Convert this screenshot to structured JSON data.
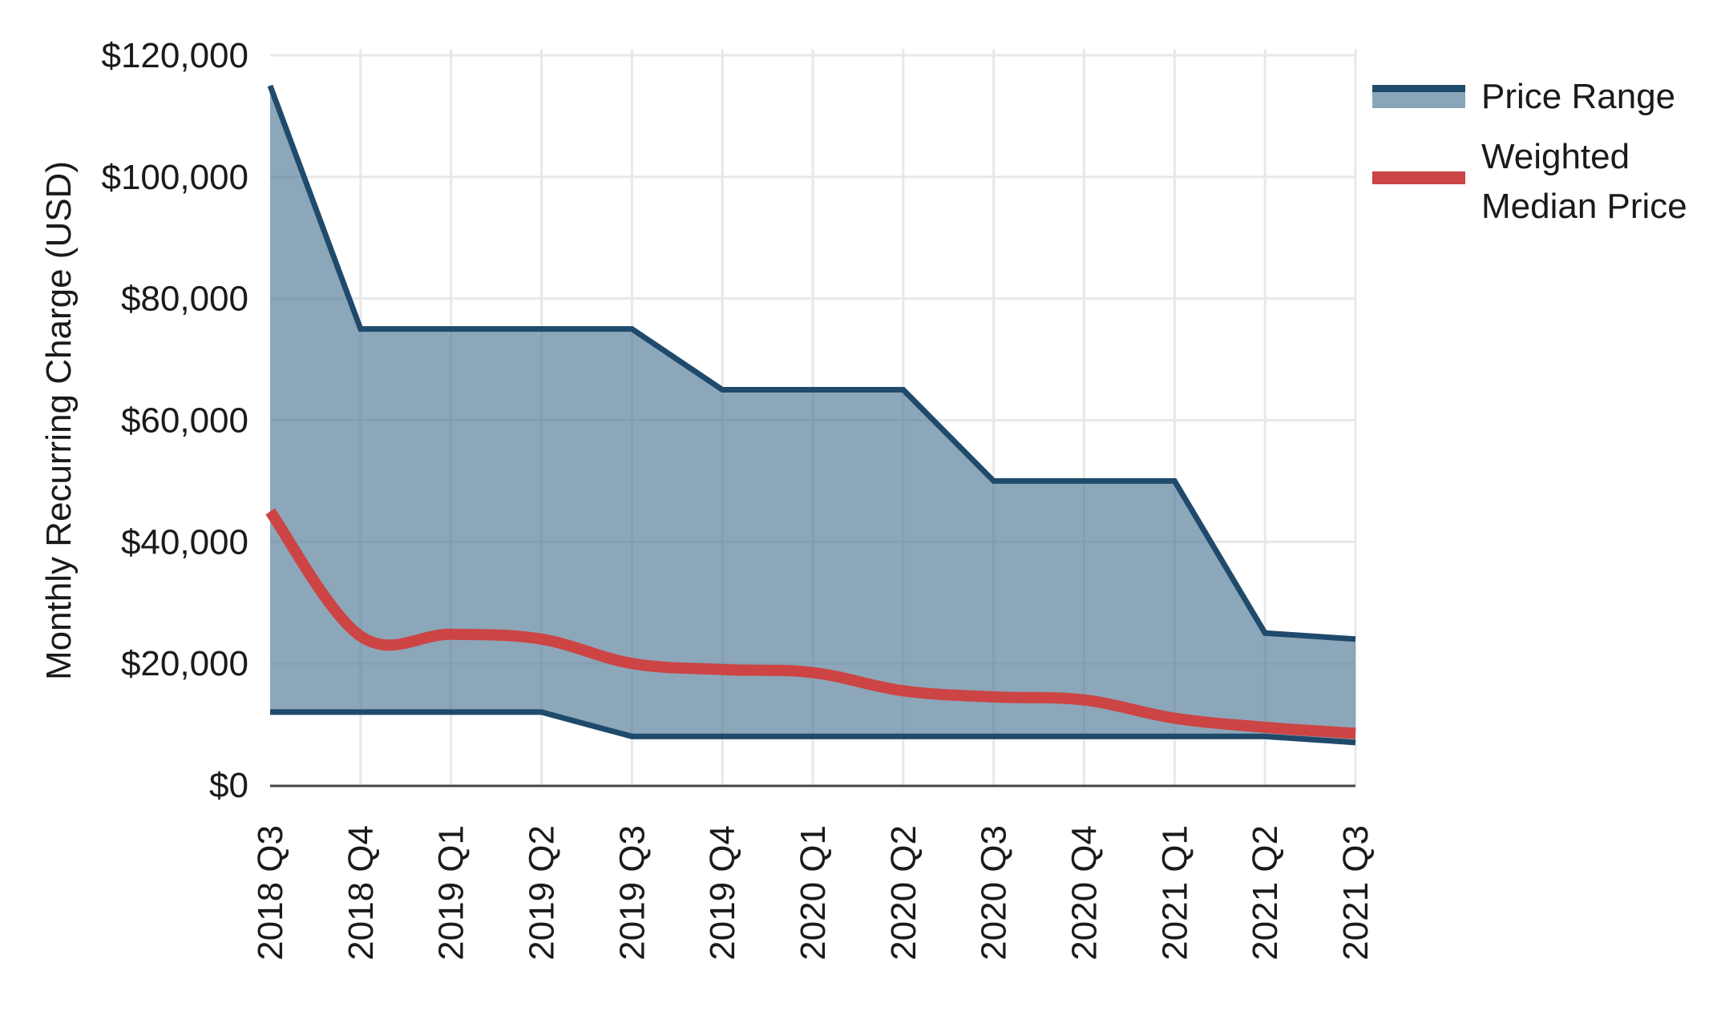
{
  "chart_data": {
    "type": "area",
    "title": "",
    "xlabel": "",
    "ylabel": "Monthly Recurring Charge (USD)",
    "ylim": [
      0,
      120000
    ],
    "yticks": [
      0,
      20000,
      40000,
      60000,
      80000,
      100000,
      120000
    ],
    "ytick_labels": [
      "$0",
      "$20,000",
      "$40,000",
      "$60,000",
      "$80,000",
      "$100,000",
      "$120,000"
    ],
    "grid": true,
    "legend_position": "right",
    "categories": [
      "2018 Q3",
      "2018 Q4",
      "2019 Q1",
      "2019 Q2",
      "2019 Q3",
      "2019 Q4",
      "2020 Q1",
      "2020 Q2",
      "2020 Q3",
      "2020 Q4",
      "2021 Q1",
      "2021 Q2",
      "2021 Q3"
    ],
    "series": [
      {
        "name": "Price Range",
        "kind": "range-band",
        "upper": [
          115000,
          75000,
          75000,
          75000,
          75000,
          65000,
          65000,
          65000,
          50000,
          50000,
          50000,
          25000,
          24000
        ],
        "lower": [
          12000,
          12000,
          12000,
          12000,
          8000,
          8000,
          8000,
          8000,
          8000,
          8000,
          8000,
          8000,
          7000
        ],
        "line_color": "#1f4a6b",
        "fill_color": "#8aa5b8"
      },
      {
        "name": "Weighted Median Price",
        "kind": "smooth-line",
        "values": [
          45000,
          24500,
          24800,
          24000,
          20000,
          19000,
          18500,
          15500,
          14500,
          14000,
          11000,
          9500,
          8500
        ],
        "line_color": "#cc4444"
      }
    ]
  },
  "legend": {
    "items": [
      {
        "label_lines": [
          "Price Range"
        ]
      },
      {
        "label_lines": [
          "Weighted",
          "Median Price"
        ]
      }
    ]
  }
}
